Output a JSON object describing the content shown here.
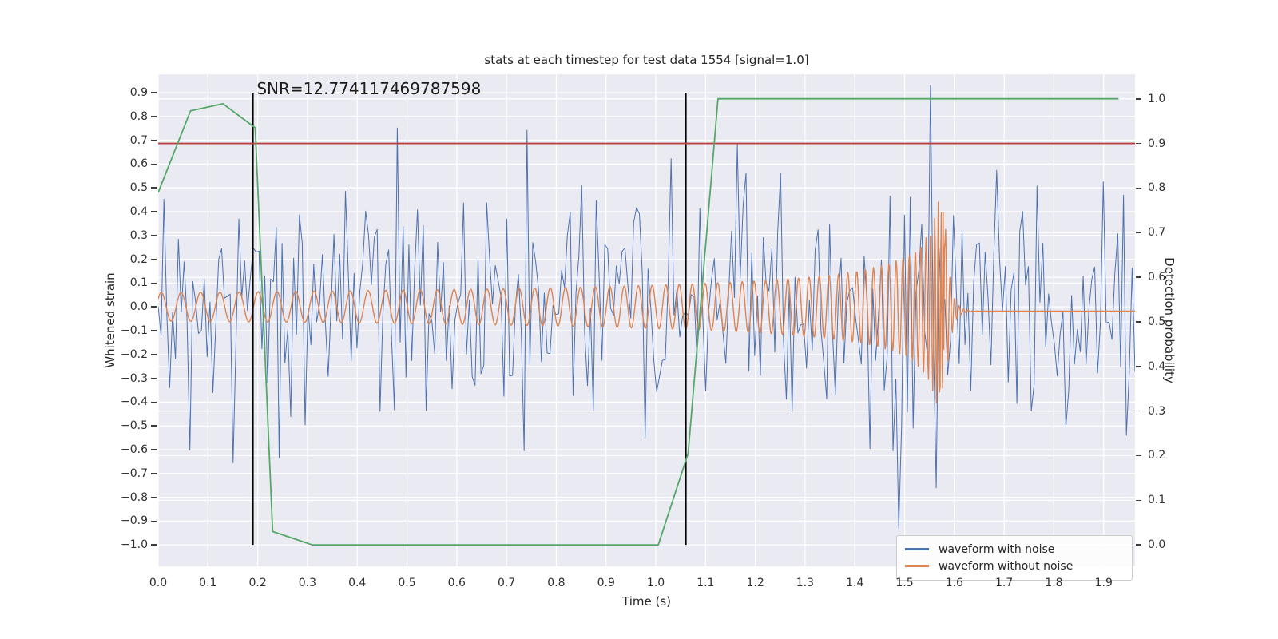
{
  "figure": {
    "background": "#ffffff",
    "plot_background": "#EAEAF2",
    "grid_color": "#ffffff"
  },
  "legend": {
    "items": [
      {
        "label": "waveform with noise",
        "color": "#4C72B0"
      },
      {
        "label": "waveform without noise",
        "color": "#DD8452"
      }
    ]
  },
  "chart_data": {
    "type": "line",
    "title": "stats at each timestep for test data 1554 [signal=1.0]",
    "xlabel": "Time (s)",
    "ylabel_left": "Whitened strain",
    "ylabel_right": "Detection probability",
    "xlim": [
      0,
      1.963
    ],
    "ylim_left": [
      -1.09,
      0.977
    ],
    "ylim_right": [
      -0.048,
      1.055
    ],
    "grid": true,
    "legend_position": "lower right",
    "xtick_values": [
      0.0,
      0.1,
      0.2,
      0.3,
      0.4,
      0.5,
      0.6,
      0.7,
      0.8,
      0.9,
      1.0,
      1.1,
      1.2,
      1.3,
      1.4,
      1.5,
      1.6,
      1.7,
      1.8,
      1.9
    ],
    "xtick_labels": [
      "0.0",
      "0.1",
      "0.2",
      "0.3",
      "0.4",
      "0.5",
      "0.6",
      "0.7",
      "0.8",
      "0.9",
      "1.0",
      "1.1",
      "1.2",
      "1.3",
      "1.4",
      "1.5",
      "1.6",
      "1.7",
      "1.8",
      "1.9"
    ],
    "ytick_left_values": [
      0.9,
      0.8,
      0.7,
      0.6,
      0.5,
      0.4,
      0.3,
      0.2,
      0.1,
      0.0,
      -0.1,
      -0.2,
      -0.3,
      -0.4,
      -0.5,
      -0.6,
      -0.7,
      -0.8,
      -0.9,
      -1.0
    ],
    "ytick_left_labels": [
      "0.9",
      "0.8",
      "0.7",
      "0.6",
      "0.5",
      "0.4",
      "0.3",
      "0.2",
      "0.1",
      "0.0",
      "−0.1",
      "−0.2",
      "−0.3",
      "−0.4",
      "−0.5",
      "−0.6",
      "−0.7",
      "−0.8",
      "−0.9",
      "−1.0"
    ],
    "ytick_right_values": [
      1.0,
      0.9,
      0.8,
      0.7,
      0.6,
      0.5,
      0.4,
      0.3,
      0.2,
      0.1,
      0.0
    ],
    "ytick_right_labels": [
      "1.0",
      "0.9",
      "0.8",
      "0.7",
      "0.6",
      "0.5",
      "0.4",
      "0.3",
      "0.2",
      "0.1",
      "0.0"
    ],
    "annotation": {
      "text": "SNR=12.774117469787598",
      "time": 0.19,
      "strain": 0.95
    },
    "threshold_line": {
      "axis": "right",
      "value": 0.9,
      "color": "#BC4142",
      "width": 1.8
    },
    "event_vlines": {
      "times": [
        0.19,
        1.06
      ],
      "strain_min": -1.0,
      "strain_max": 0.9,
      "color": "#000000",
      "width": 2.4
    },
    "detection_probability": {
      "name": "detection probability",
      "axis": "right",
      "color": "#55A868",
      "width": 1.8,
      "points": [
        [
          0.0,
          0.79
        ],
        [
          0.065,
          0.973
        ],
        [
          0.13,
          0.989
        ],
        [
          0.165,
          0.96
        ],
        [
          0.195,
          0.935
        ],
        [
          0.23,
          0.03
        ],
        [
          0.31,
          0.0
        ],
        [
          1.005,
          0.0
        ],
        [
          1.065,
          0.205
        ],
        [
          1.125,
          1.0
        ],
        [
          1.93,
          1.0
        ]
      ]
    },
    "waveform_with_noise": {
      "name": "waveform with noise",
      "axis": "left",
      "color": "#4C72B0",
      "width": 1.0,
      "samples": 340,
      "noise_sigma": 0.28,
      "noise_clip": 0.93,
      "seed": 1554
    },
    "waveform_without_noise": {
      "name": "waveform without noise",
      "axis": "left",
      "color": "#DD8452",
      "width": 1.4,
      "samples": 1600,
      "start_amplitude": 0.06,
      "start_frequency_hz": 25,
      "merger_time": 1.58,
      "peak_amplitude": 0.44,
      "post_merger_level": -0.018,
      "phase0": 0.6
    }
  }
}
